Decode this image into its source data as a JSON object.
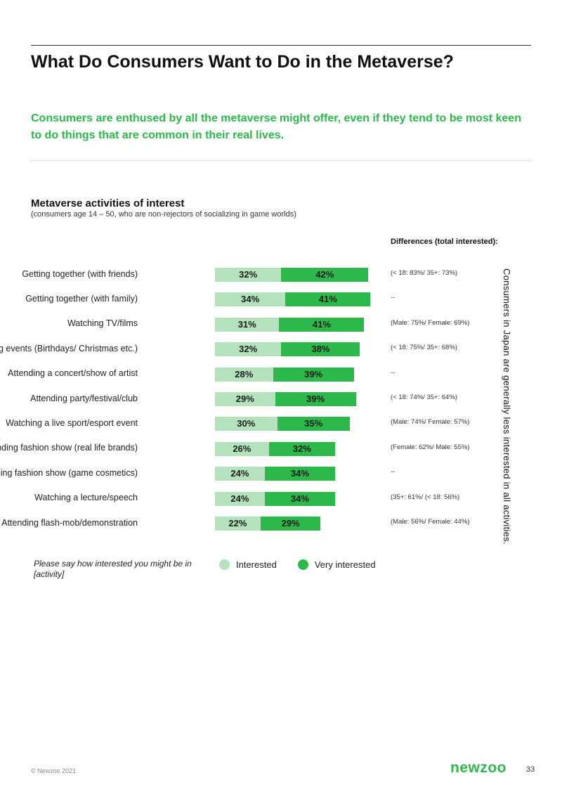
{
  "title": "What Do Consumers Want to Do in the Metaverse?",
  "subtitle": "Consumers are enthused by all the metaverse might offer, even if they tend to be most keen to do things that are common in their real lives.",
  "diff_header": "Differences (total interested):",
  "vertical_note": "Consumers in Japan are generally less interested in all activities.",
  "question": "Please say how interested you might be in [activity]",
  "colors": {
    "accent": "#2db84b",
    "interested": "#b3e2bd",
    "very_interested": "#2db84b"
  },
  "chart_data": {
    "type": "bar",
    "orientation": "horizontal",
    "stacked": true,
    "title": "Metaverse activities of interest",
    "subtitle": "(consumers age 14 – 50, who are non-rejectors of socializing in game worlds)",
    "categories": [
      "Getting together (with friends)",
      "Getting together (with family)",
      "Watching TV/films",
      "Hosting  events (Birthdays/ Christmas etc.)",
      "Attending a concert/show of artist",
      "Attending party/festival/club",
      "Watching a live sport/esport event",
      "Attending fashion show (real life brands)",
      "Attending fashion show (game cosmetics)",
      "Watching a lecture/speech",
      "Attending  flash-mob/demonstration"
    ],
    "series": [
      {
        "name": "Interested",
        "values": [
          32,
          34,
          31,
          32,
          28,
          29,
          30,
          26,
          24,
          24,
          22
        ],
        "labels": [
          "32%",
          "34%",
          "31%",
          "32%",
          "28%",
          "29%",
          "30%",
          "26%",
          "24%",
          "24%",
          "22%"
        ]
      },
      {
        "name": "Very interested",
        "values": [
          42,
          41,
          41,
          38,
          39,
          39,
          35,
          32,
          34,
          34,
          29
        ],
        "labels": [
          "42%",
          "41%",
          "41%",
          "38%",
          "39%",
          "39%",
          "35%",
          "32%",
          "34%",
          "34%",
          "29%"
        ]
      }
    ],
    "differences": [
      "(< 18: 83%/ 35+: 73%)",
      "--",
      "(Male: 75%/ Female: 69%)",
      "(< 18: 75%/ 35+: 68%)",
      "--",
      "(< 18: 74%/ 35+: 64%)",
      "(Male: 74%/ Female: 57%)",
      "(Female: 62%/ Male: 55%)",
      "--",
      "(35+: 61%/ (< 18: 56%)",
      "(Male: 56%/ Female: 44%)"
    ],
    "xlim": [
      0,
      75
    ],
    "legend": [
      "Interested",
      "Very interested"
    ],
    "legend_position": "bottom"
  },
  "footer": {
    "copyright": "© Newzoo 2021",
    "logo": "newzoo",
    "page": "33"
  }
}
